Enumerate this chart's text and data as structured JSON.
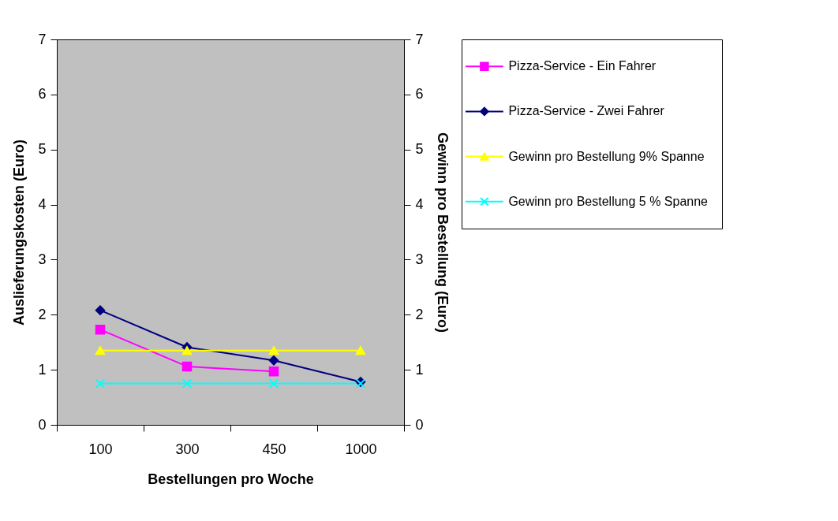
{
  "chart_data": {
    "type": "line",
    "xlabel": "Bestellungen pro Woche",
    "ylabel": "Auslieferungskosten (Euro)",
    "y2label": "Gewinn pro Bestellung (Euro)",
    "categories": [
      "100",
      "300",
      "450",
      "1000"
    ],
    "series": [
      {
        "name": "Pizza-Service - Ein Fahrer",
        "color": "#ff00ff",
        "marker": "square",
        "values": [
          1.73,
          1.06,
          0.97,
          null
        ]
      },
      {
        "name": "Pizza-Service - Zwei Fahrer",
        "color": "#000080",
        "marker": "diamond",
        "values": [
          2.08,
          1.41,
          1.17,
          0.78
        ]
      },
      {
        "name": "Gewinn pro Bestellung 9% Spanne",
        "color": "#ffff00",
        "marker": "triangle",
        "values": [
          1.35,
          1.35,
          1.35,
          1.35
        ]
      },
      {
        "name": "Gewinn pro Bestellung 5 % Spanne",
        "color": "#00ffff",
        "marker": "cross",
        "values": [
          0.75,
          0.75,
          0.75,
          0.75
        ]
      }
    ],
    "ylim": [
      0,
      7
    ],
    "yticks": [
      0,
      1,
      2,
      3,
      4,
      5,
      6,
      7
    ],
    "y2lim": [
      0,
      7
    ],
    "y2ticks": [
      0,
      1,
      2,
      3,
      4,
      5,
      6,
      7
    ],
    "grid": false,
    "legend": "right",
    "line_style": "solid"
  }
}
